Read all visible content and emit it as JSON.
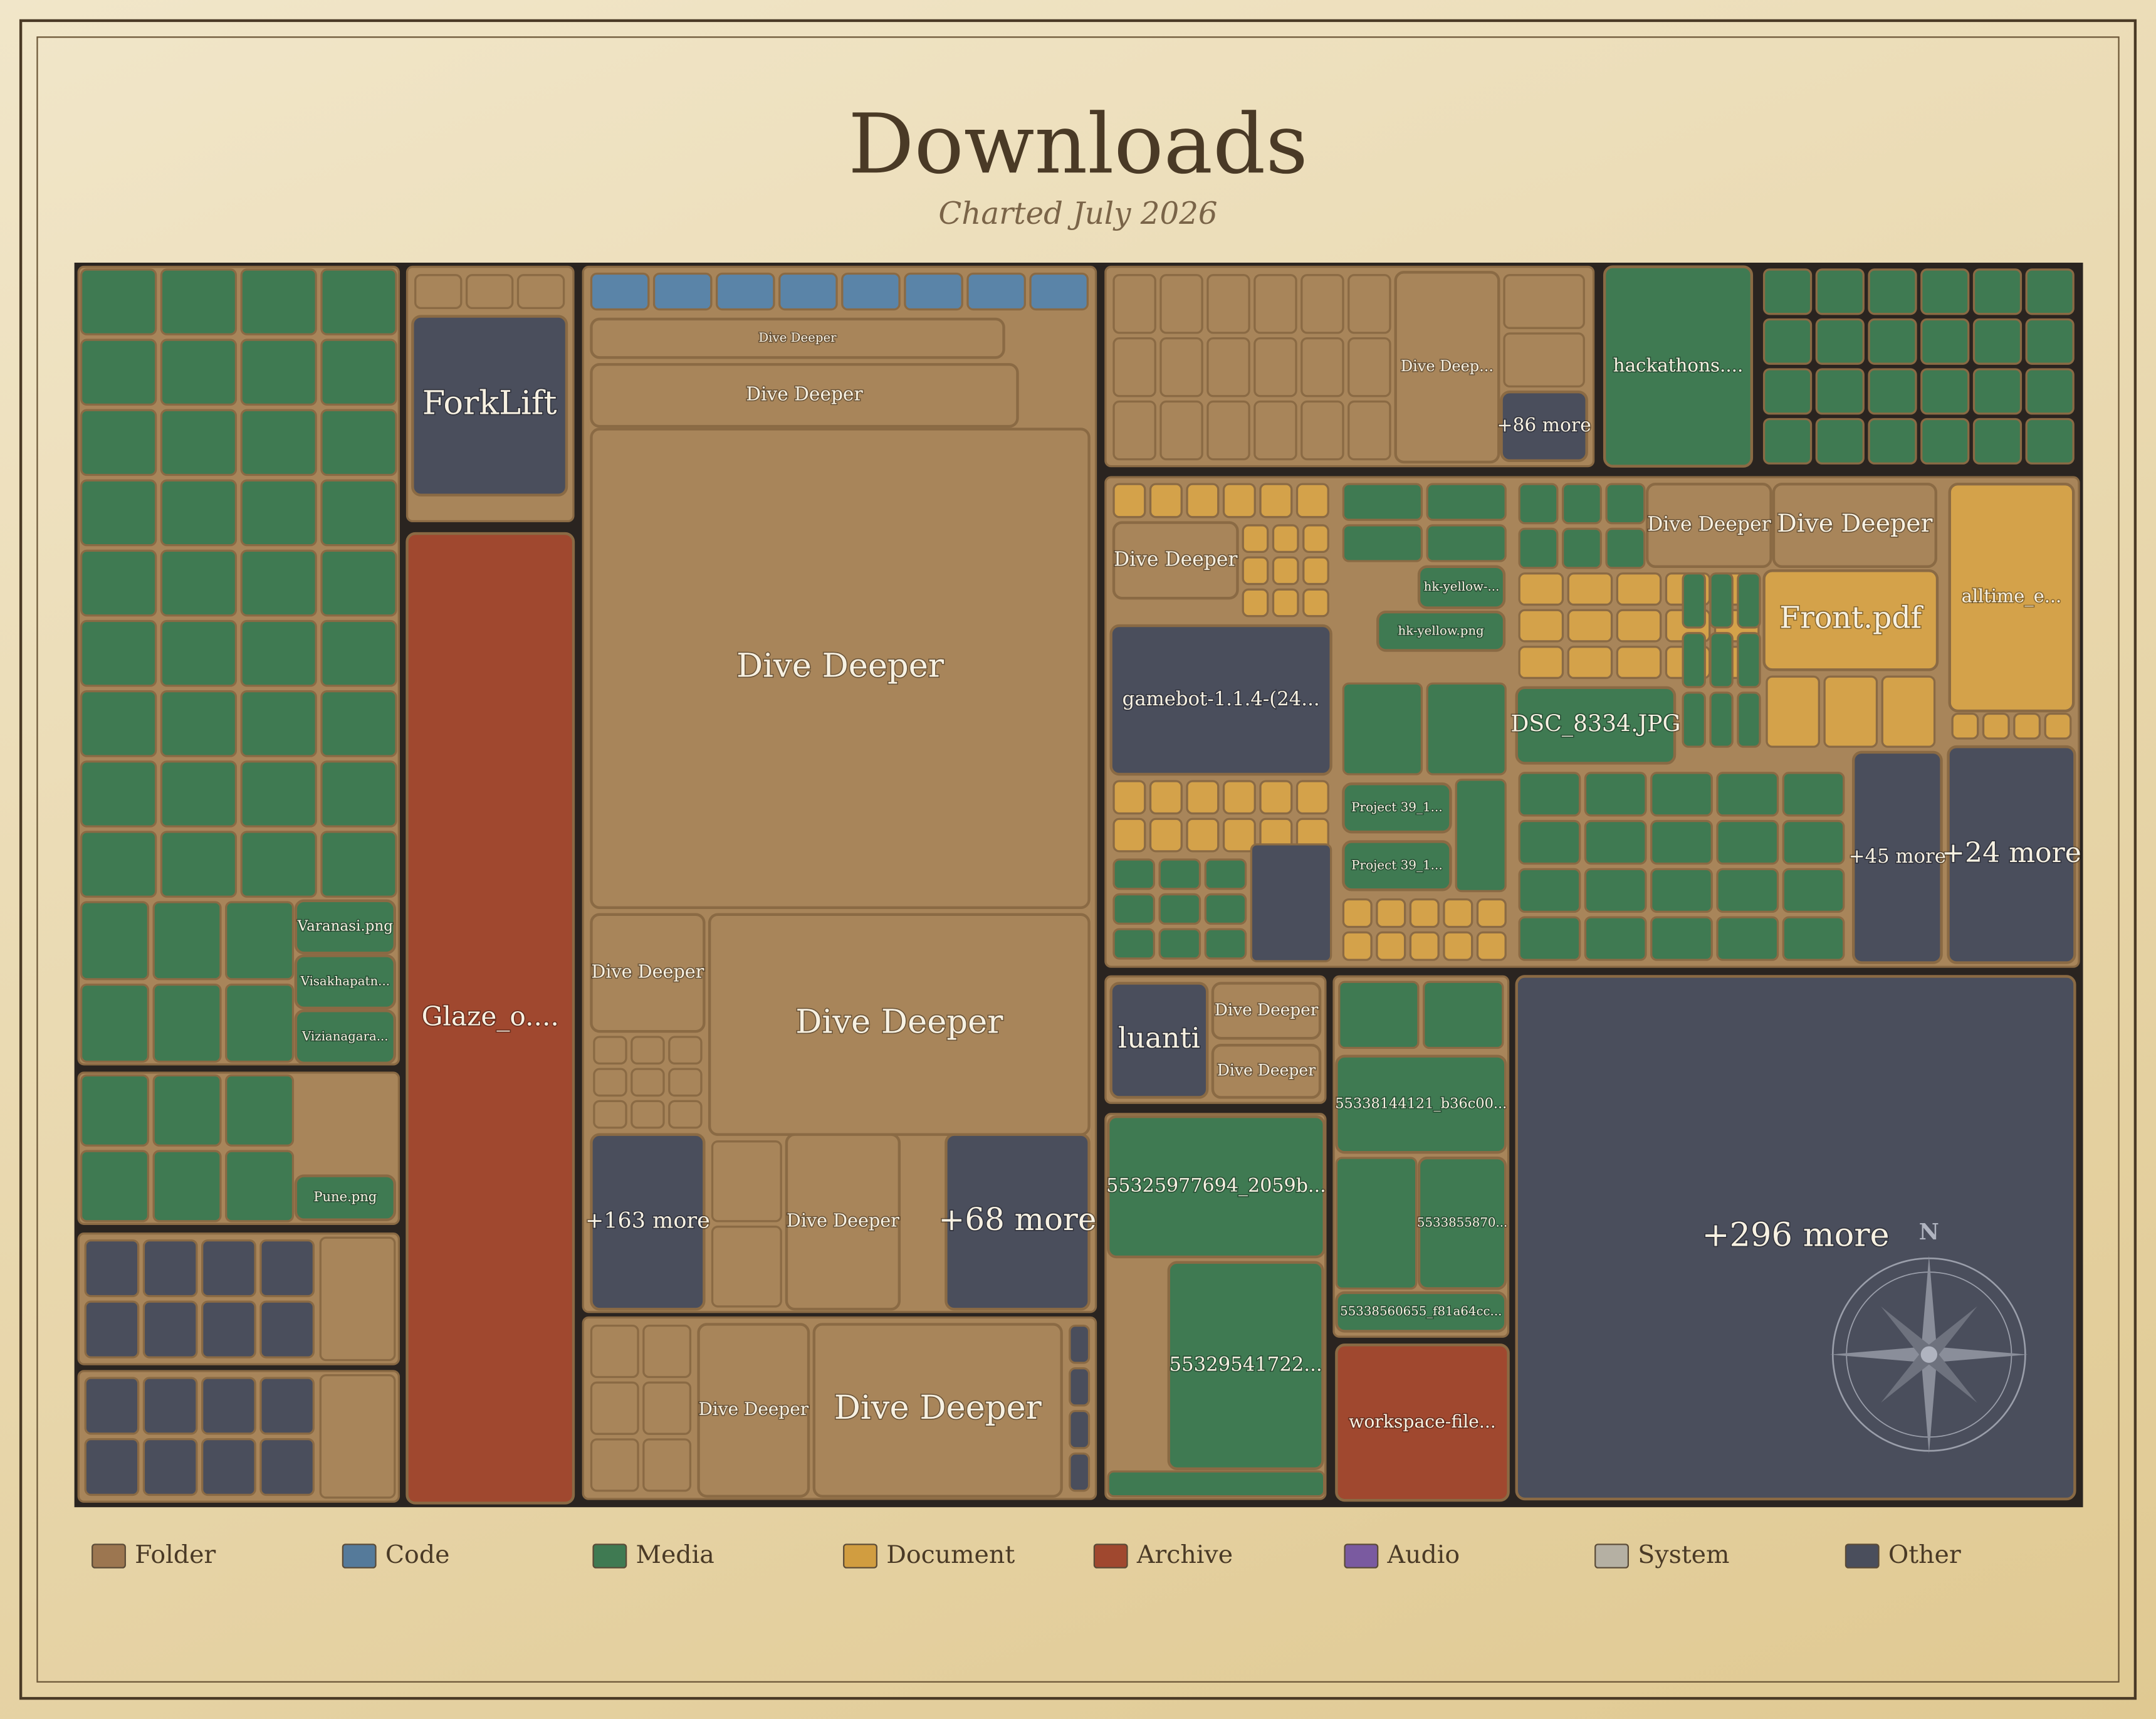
{
  "header": {
    "title": "Downloads",
    "subtitle": "Charted July 2026"
  },
  "tiles": [
    {
      "label": "Varanasi.png",
      "color": "#3f7a52"
    },
    {
      "label": "Visakhapatn...",
      "color": "#3f7a52"
    },
    {
      "label": "Vizianagara...",
      "color": "#3f7a52"
    },
    {
      "label": "Pune.png",
      "color": "#3f7a52"
    },
    {
      "label": "ForkLift",
      "color": "#4a4e5c"
    },
    {
      "label": "Glaze_o....",
      "color": "#a0482f"
    },
    {
      "label": "Dive Deeper",
      "color": "#a8855a"
    },
    {
      "label": "Dive Deeper",
      "color": "#a8855a"
    },
    {
      "label": "Dive Deeper",
      "color": "#a8855a"
    },
    {
      "label": "Dive Deeper",
      "color": "#a8855a"
    },
    {
      "label": "Dive Deeper",
      "color": "#a8855a"
    },
    {
      "label": "+163 more",
      "color": "#4a4e5c"
    },
    {
      "label": "Dive Deeper",
      "color": "#a8855a"
    },
    {
      "label": "+68 more",
      "color": "#4a4e5c"
    },
    {
      "label": "Dive Deeper",
      "color": "#a8855a"
    },
    {
      "label": "Dive Deeper",
      "color": "#a8855a"
    },
    {
      "label": "Dive Deep...",
      "color": "#a8855a"
    },
    {
      "label": "+86 more",
      "color": "#4a4e5c"
    },
    {
      "label": "hackathons....",
      "color": "#3f7a52"
    },
    {
      "label": "Dive Deeper",
      "color": "#a8855a"
    },
    {
      "label": "gamebot-1.1.4-(24...",
      "color": "#4a4e5c"
    },
    {
      "label": "hk-yellow-...",
      "color": "#3f7a52"
    },
    {
      "label": "hk-yellow.png",
      "color": "#3f7a52"
    },
    {
      "label": "Project 39_1...",
      "color": "#3f7a52"
    },
    {
      "label": "Project 39_1...",
      "color": "#3f7a52"
    },
    {
      "label": "Dive Deeper",
      "color": "#a8855a"
    },
    {
      "label": "Dive Deeper",
      "color": "#a8855a"
    },
    {
      "label": "Front.pdf",
      "color": "#d4a24a"
    },
    {
      "label": "alltime_e...",
      "color": "#d4a24a"
    },
    {
      "label": "DSC_8334.JPG",
      "color": "#3f7a52"
    },
    {
      "label": "+45 more",
      "color": "#4a4e5c"
    },
    {
      "label": "+24 more",
      "color": "#4a4e5c"
    },
    {
      "label": "luanti",
      "color": "#4a4e5c"
    },
    {
      "label": "Dive Deeper",
      "color": "#a8855a"
    },
    {
      "label": "Dive Deeper",
      "color": "#a8855a"
    },
    {
      "label": "55325977694_2059b...",
      "color": "#3f7a52"
    },
    {
      "label": "55329541722...",
      "color": "#3f7a52"
    },
    {
      "label": "55338144121_b36c00...",
      "color": "#3f7a52"
    },
    {
      "label": "5533855870...",
      "color": "#3f7a52"
    },
    {
      "label": "55338560655_f81a64cc...",
      "color": "#3f7a52"
    },
    {
      "label": "workspace-file...",
      "color": "#a0482f"
    },
    {
      "label": "+296 more",
      "color": "#4a4e5c"
    }
  ],
  "compass": "N",
  "legend": [
    {
      "label": "Folder",
      "color": "#9c7650"
    },
    {
      "label": "Code",
      "color": "#557a9a"
    },
    {
      "label": "Media",
      "color": "#3f7a52"
    },
    {
      "label": "Document",
      "color": "#d19d40"
    },
    {
      "label": "Archive",
      "color": "#a0482f"
    },
    {
      "label": "Audio",
      "color": "#7a5aa0"
    },
    {
      "label": "System",
      "color": "#b5b0a3"
    },
    {
      "label": "Other",
      "color": "#4a4e5c"
    }
  ]
}
